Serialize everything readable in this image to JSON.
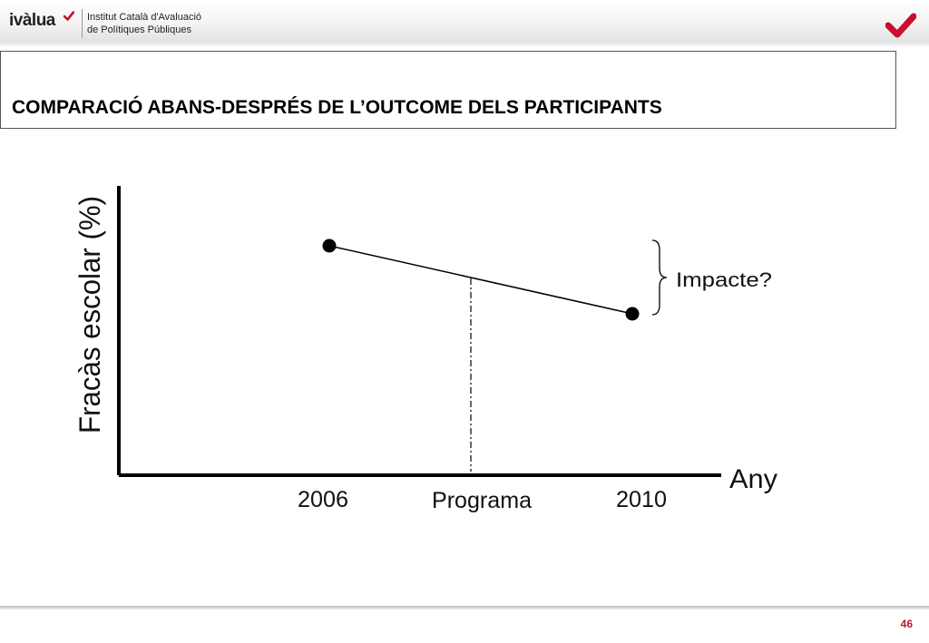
{
  "header": {
    "logo_word": "ivàlua",
    "org_line1": "Institut Català d'Avaluació",
    "org_line2": "de Polítiques Públiques"
  },
  "title": "COMPARACIÓ ABANS-DESPRÉS DE L’OUTCOME DELS PARTICIPANTS",
  "diagram": {
    "y_axis_label": "Fracàs escolar (%)",
    "x_axis_label": "Any",
    "tick_start": "2006",
    "tick_programa": "Programa",
    "tick_end": "2010",
    "impact_label": "Impacte?"
  },
  "footer": {
    "page_number": "46"
  },
  "colors": {
    "brand_red": "#c8102e"
  },
  "icons": {
    "logo_check": "check-icon",
    "brand_mark": "check-icon"
  }
}
